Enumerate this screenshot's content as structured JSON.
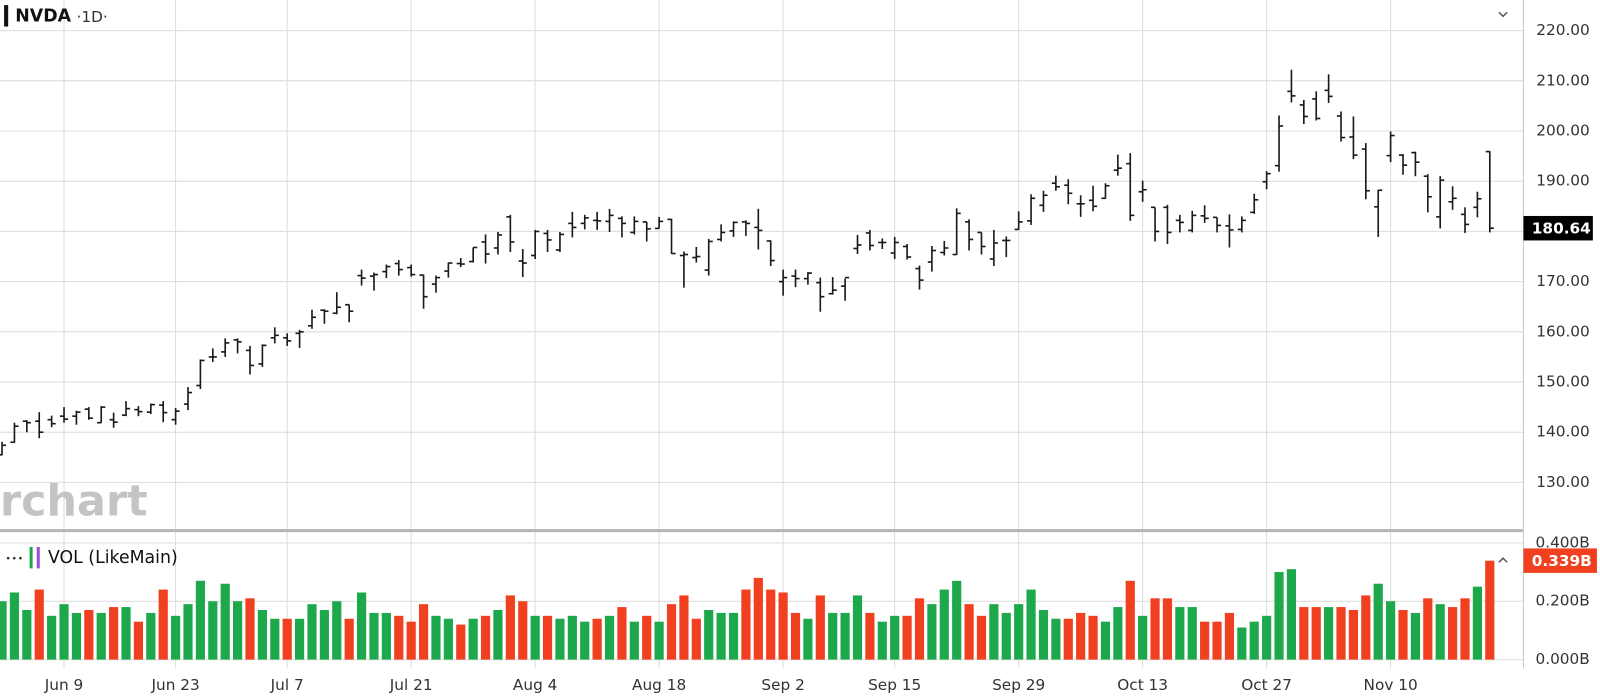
{
  "chart_data": [
    {
      "type": "ohlc",
      "title": "NVDA",
      "subtitle": "·1D·",
      "watermark": "rchart",
      "color": "#1a1a1a",
      "grid": true,
      "categories": [
        null,
        null,
        null,
        null,
        null,
        "Jun 9",
        null,
        null,
        null,
        null,
        null,
        null,
        null,
        null,
        "Jun 23",
        null,
        null,
        null,
        null,
        null,
        null,
        null,
        null,
        "Jul 7",
        null,
        null,
        null,
        null,
        null,
        null,
        null,
        null,
        null,
        "Jul 21",
        null,
        null,
        null,
        null,
        null,
        null,
        null,
        null,
        null,
        "Aug 4",
        null,
        null,
        null,
        null,
        null,
        null,
        null,
        null,
        null,
        "Aug 18",
        null,
        null,
        null,
        null,
        null,
        null,
        null,
        null,
        null,
        "Sep 2",
        null,
        null,
        null,
        null,
        null,
        null,
        null,
        null,
        "Sep 15",
        null,
        null,
        null,
        null,
        null,
        null,
        null,
        null,
        null,
        "Sep 29",
        null,
        null,
        null,
        null,
        null,
        null,
        null,
        null,
        null,
        "Oct 13",
        null,
        null,
        null,
        null,
        null,
        null,
        null,
        null,
        null,
        "Oct 27",
        null,
        null,
        null,
        null,
        null,
        null,
        null,
        null,
        null,
        "Nov 10",
        null,
        null,
        null,
        null,
        null,
        null,
        null,
        null
      ],
      "open": [
        135.5,
        138.0,
        142.2,
        142.2,
        142.5,
        143.2,
        143.2,
        144.6,
        141.9,
        142.5,
        143.4,
        144.5,
        144.0,
        145.4,
        142.5,
        145.6,
        149.3,
        155.0,
        156.0,
        158.4,
        156.3,
        153.6,
        158.8,
        158.8,
        159.7,
        161.2,
        164.3,
        163.7,
        165.4,
        171.2,
        171.1,
        172.0,
        173.6,
        172.8,
        171.3,
        169.5,
        172.1,
        173.6,
        174.0,
        177.9,
        176.7,
        182.9,
        174.1,
        175.2,
        179.6,
        176.3,
        181.6,
        181.6,
        182.2,
        182.0,
        182.6,
        179.8,
        181.9,
        180.6,
        182.4,
        175.2,
        174.8,
        172.3,
        178.4,
        180.1,
        181.9,
        180.8,
        178.1,
        170.0,
        171.1,
        170.6,
        169.8,
        167.6,
        169.1,
        176.6,
        179.7,
        177.8,
        175.7,
        177.0,
        172.6,
        173.9,
        175.8,
        175.4,
        181.9,
        179.8,
        174.5,
        178.2,
        180.4,
        182.1,
        185.2,
        189.6,
        189.2,
        185.5,
        186.2,
        186.6,
        192.2,
        193.5,
        187.9,
        184.8,
        184.8,
        182.2,
        180.2,
        183.1,
        182.8,
        181.1,
        180.4,
        183.8,
        189.9,
        193.1,
        207.9,
        205.2,
        206.4,
        208.1,
        203.0,
        198.8,
        196.4,
        184.9,
        195.1,
        195.2,
        195.7,
        191.0,
        182.9,
        185.9,
        183.4,
        184.8,
        195.9
      ],
      "high": [
        138.1,
        141.9,
        142.4,
        144.0,
        143.3,
        145.0,
        144.3,
        145.0,
        145.2,
        143.9,
        146.2,
        145.2,
        145.7,
        146.2,
        144.8,
        149.0,
        154.5,
        156.7,
        158.7,
        158.7,
        157.2,
        157.5,
        160.9,
        159.7,
        160.4,
        164.4,
        164.5,
        167.9,
        165.4,
        172.4,
        171.8,
        173.4,
        174.3,
        173.4,
        171.4,
        171.2,
        173.8,
        174.7,
        176.8,
        179.4,
        179.9,
        183.3,
        176.5,
        180.3,
        180.3,
        179.9,
        183.9,
        183.3,
        183.9,
        184.5,
        183.0,
        183.0,
        181.9,
        182.9,
        182.5,
        176.0,
        176.9,
        178.5,
        181.4,
        182.0,
        182.2,
        184.5,
        178.2,
        172.4,
        172.4,
        171.9,
        170.8,
        170.9,
        170.6,
        179.3,
        180.3,
        178.6,
        178.9,
        177.5,
        173.2,
        177.1,
        178.1,
        184.6,
        182.4,
        179.8,
        180.3,
        179.0,
        184.0,
        187.4,
        188.1,
        191.1,
        190.4,
        187.2,
        189.1,
        189.6,
        195.3,
        195.6,
        190.1,
        184.8,
        185.3,
        183.3,
        184.1,
        185.2,
        182.8,
        183.4,
        183.0,
        187.5,
        192.0,
        203.1,
        212.2,
        206.2,
        207.9,
        211.3,
        203.9,
        202.9,
        197.6,
        188.3,
        199.9,
        195.4,
        195.9,
        191.4,
        191.0,
        189.0,
        184.8,
        187.9,
        196.0
      ],
      "low": [
        135.4,
        137.9,
        140.0,
        138.8,
        141.0,
        141.9,
        141.5,
        142.5,
        141.9,
        140.9,
        143.2,
        143.2,
        143.6,
        142.0,
        141.5,
        144.4,
        148.6,
        154.0,
        155.0,
        155.7,
        151.5,
        153.0,
        157.7,
        157.2,
        156.8,
        160.6,
        161.6,
        163.5,
        161.9,
        169.2,
        168.2,
        170.7,
        171.2,
        171.0,
        164.6,
        167.8,
        170.8,
        172.9,
        173.8,
        173.6,
        175.4,
        175.9,
        170.9,
        174.5,
        175.9,
        175.9,
        178.8,
        180.4,
        180.3,
        179.9,
        178.8,
        179.4,
        178.0,
        180.6,
        175.5,
        168.8,
        173.8,
        171.2,
        178.0,
        178.9,
        179.1,
        176.4,
        173.1,
        167.2,
        168.9,
        169.4,
        164.0,
        167.4,
        166.2,
        175.5,
        176.2,
        176.5,
        174.5,
        174.4,
        168.4,
        172.0,
        175.2,
        175.3,
        176.2,
        175.4,
        173.1,
        174.9,
        180.3,
        181.3,
        183.9,
        188.1,
        185.4,
        182.9,
        184.0,
        186.5,
        191.1,
        182.1,
        185.9,
        178.0,
        177.5,
        179.8,
        179.8,
        181.7,
        179.8,
        176.8,
        179.8,
        183.5,
        188.4,
        191.9,
        205.7,
        201.4,
        202.1,
        205.6,
        197.9,
        194.4,
        186.4,
        178.9,
        193.8,
        191.3,
        191.0,
        183.8,
        180.6,
        184.3,
        179.7,
        182.8,
        179.8
      ],
      "close": [
        137.4,
        141.2,
        141.9,
        140.0,
        141.7,
        142.6,
        144.0,
        142.8,
        145.0,
        142.0,
        144.7,
        144.1,
        145.5,
        143.9,
        144.2,
        147.9,
        154.3,
        155.0,
        157.8,
        158.0,
        153.3,
        157.3,
        159.3,
        158.2,
        160.0,
        162.9,
        164.1,
        164.9,
        164.1,
        170.7,
        171.4,
        173.0,
        172.4,
        171.4,
        167.0,
        170.8,
        173.7,
        173.5,
        176.8,
        175.5,
        179.3,
        177.9,
        173.7,
        180.0,
        178.3,
        179.4,
        180.8,
        182.7,
        182.1,
        183.2,
        181.6,
        182.0,
        180.5,
        182.0,
        175.6,
        175.4,
        175.0,
        178.0,
        179.8,
        181.8,
        181.6,
        180.2,
        174.2,
        170.8,
        170.6,
        171.7,
        167.0,
        168.3,
        170.8,
        177.3,
        177.2,
        177.8,
        177.8,
        174.9,
        170.3,
        176.2,
        176.7,
        183.6,
        178.4,
        177.0,
        177.7,
        178.2,
        181.9,
        186.6,
        187.2,
        188.9,
        187.6,
        185.5,
        185.0,
        189.1,
        192.6,
        183.2,
        188.3,
        180.0,
        179.8,
        181.8,
        183.2,
        182.6,
        181.2,
        180.3,
        182.2,
        186.3,
        191.5,
        201.0,
        207.0,
        202.9,
        202.5,
        206.9,
        198.7,
        195.2,
        188.1,
        188.2,
        199.1,
        193.2,
        193.8,
        186.9,
        190.2,
        186.6,
        181.4,
        186.5,
        180.64
      ],
      "ylim": [
        120.4,
        226.1
      ],
      "yticks": [
        {
          "value": 130,
          "label": "130.00"
        },
        {
          "value": 140,
          "label": "140.00"
        },
        {
          "value": 150,
          "label": "150.00"
        },
        {
          "value": 160,
          "label": "160.00"
        },
        {
          "value": 170,
          "label": "170.00"
        },
        {
          "value": 180,
          "label": "180.00"
        },
        {
          "value": 190,
          "label": "190.00"
        },
        {
          "value": 200,
          "label": "200.00"
        },
        {
          "value": 210,
          "label": "210.00"
        },
        {
          "value": 220,
          "label": "220.00"
        }
      ]
    },
    {
      "type": "bar",
      "title": "VOL (LikeMain)",
      "up_color": "#1ea84c",
      "down_color": "#f0401f",
      "grid": true,
      "values": [
        0.2,
        0.23,
        0.17,
        0.24,
        0.15,
        0.19,
        0.16,
        0.17,
        0.16,
        0.18,
        0.18,
        0.13,
        0.16,
        0.24,
        0.15,
        0.19,
        0.27,
        0.2,
        0.26,
        0.2,
        0.21,
        0.17,
        0.14,
        0.14,
        0.14,
        0.19,
        0.17,
        0.2,
        0.14,
        0.23,
        0.16,
        0.16,
        0.15,
        0.13,
        0.19,
        0.15,
        0.14,
        0.12,
        0.14,
        0.15,
        0.17,
        0.22,
        0.2,
        0.15,
        0.15,
        0.14,
        0.15,
        0.13,
        0.14,
        0.15,
        0.18,
        0.13,
        0.15,
        0.13,
        0.19,
        0.22,
        0.14,
        0.17,
        0.16,
        0.16,
        0.24,
        0.28,
        0.24,
        0.23,
        0.16,
        0.14,
        0.22,
        0.16,
        0.16,
        0.22,
        0.16,
        0.13,
        0.15,
        0.15,
        0.21,
        0.19,
        0.24,
        0.27,
        0.19,
        0.15,
        0.19,
        0.16,
        0.19,
        0.24,
        0.17,
        0.14,
        0.14,
        0.16,
        0.15,
        0.13,
        0.18,
        0.27,
        0.15,
        0.21,
        0.21,
        0.18,
        0.18,
        0.13,
        0.13,
        0.16,
        0.11,
        0.13,
        0.15,
        0.3,
        0.31,
        0.18,
        0.18,
        0.18,
        0.18,
        0.17,
        0.22,
        0.26,
        0.2,
        0.17,
        0.16,
        0.21,
        0.19,
        0.18,
        0.21,
        0.25,
        0.339
      ],
      "last_value_label": "0.339B",
      "ylim": [
        -0.03,
        0.435
      ],
      "yticks": [
        {
          "value": 0,
          "label": "0.000B"
        },
        {
          "value": 0.2,
          "label": "0.200B"
        },
        {
          "value": 0.4,
          "label": "0.400B"
        }
      ]
    }
  ]
}
